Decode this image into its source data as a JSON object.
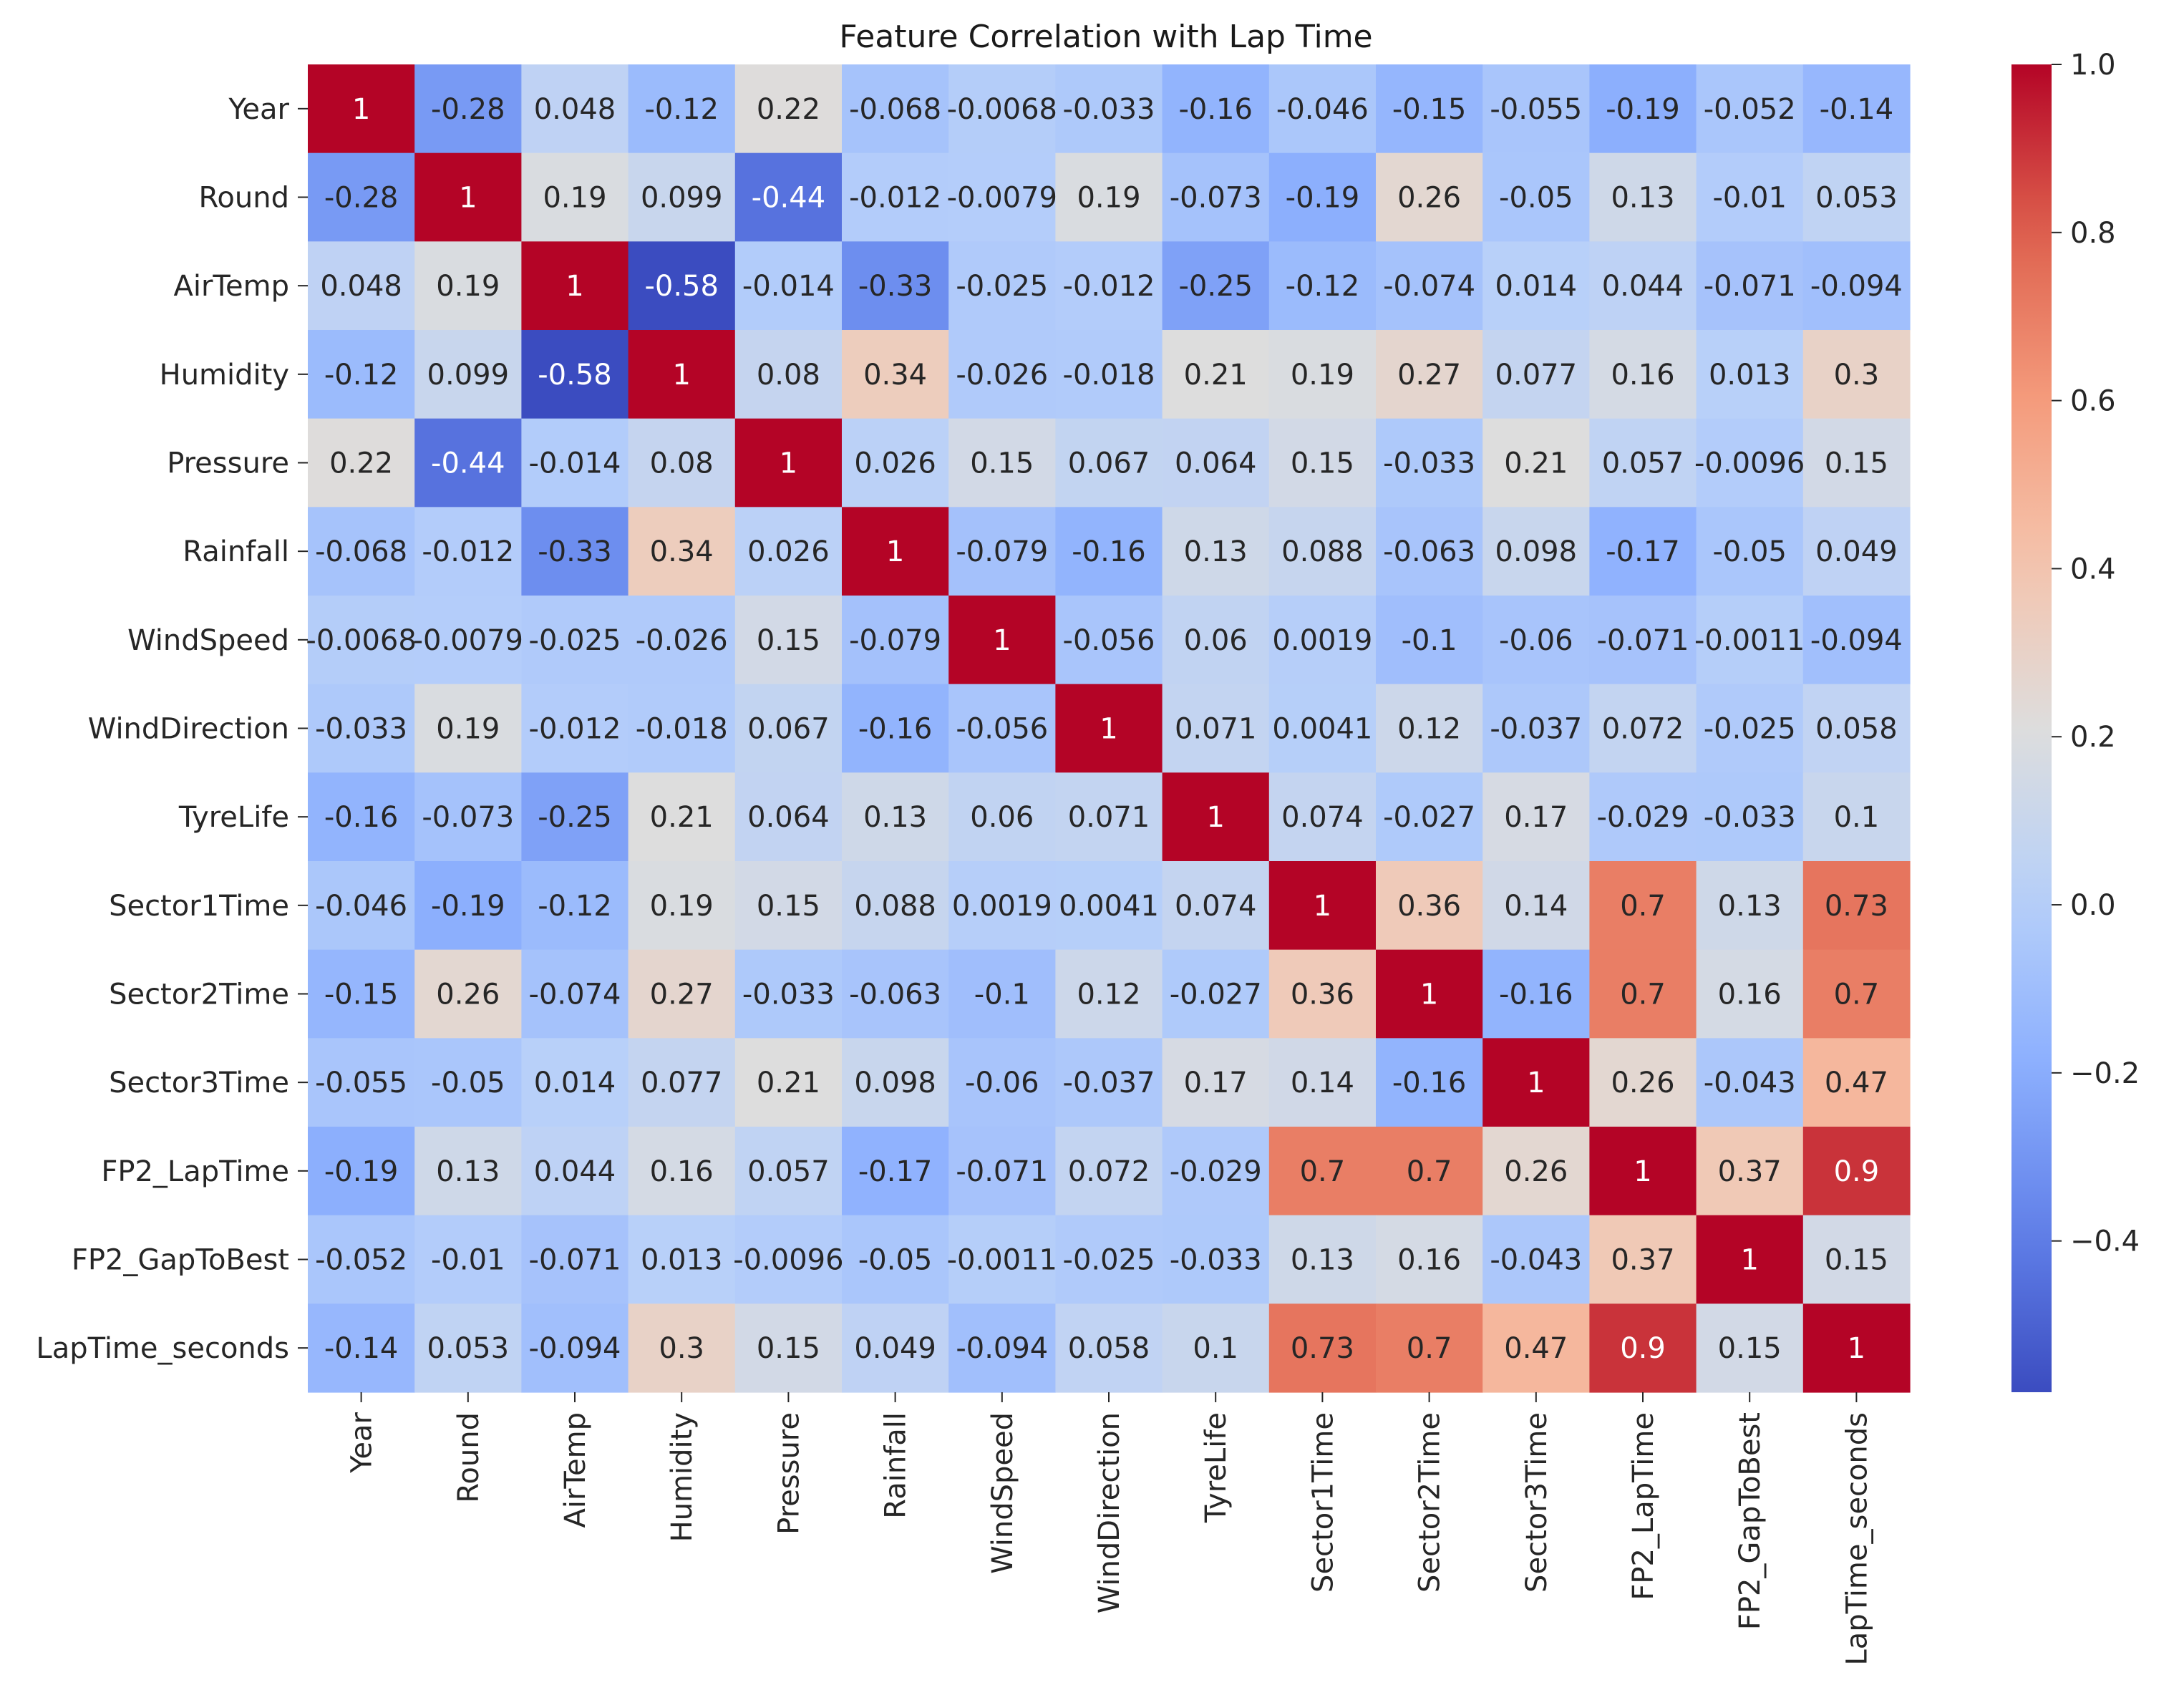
{
  "chart_data": {
    "type": "heatmap",
    "title": "Feature Correlation with Lap Time",
    "xlabel": "",
    "ylabel": "",
    "colormap": "coolwarm",
    "vmin": -0.58,
    "vmax": 1.0,
    "labels": [
      "Year",
      "Round",
      "AirTemp",
      "Humidity",
      "Pressure",
      "Rainfall",
      "WindSpeed",
      "WindDirection",
      "TyreLife",
      "Sector1Time",
      "Sector2Time",
      "Sector3Time",
      "FP2_LapTime",
      "FP2_GapToBest",
      "LapTime_seconds"
    ],
    "cell_text": [
      [
        "1",
        "-0.28",
        "0.048",
        "-0.12",
        "0.22",
        "-0.068",
        "-0.0068",
        "-0.033",
        "-0.16",
        "-0.046",
        "-0.15",
        "-0.055",
        "-0.19",
        "-0.052",
        "-0.14"
      ],
      [
        "-0.28",
        "1",
        "0.19",
        "0.099",
        "-0.44",
        "-0.012",
        "-0.0079",
        "0.19",
        "-0.073",
        "-0.19",
        "0.26",
        "-0.05",
        "0.13",
        "-0.01",
        "0.053"
      ],
      [
        "0.048",
        "0.19",
        "1",
        "-0.58",
        "-0.014",
        "-0.33",
        "-0.025",
        "-0.012",
        "-0.25",
        "-0.12",
        "-0.074",
        "0.014",
        "0.044",
        "-0.071",
        "-0.094"
      ],
      [
        "-0.12",
        "0.099",
        "-0.58",
        "1",
        "0.08",
        "0.34",
        "-0.026",
        "-0.018",
        "0.21",
        "0.19",
        "0.27",
        "0.077",
        "0.16",
        "0.013",
        "0.3"
      ],
      [
        "0.22",
        "-0.44",
        "-0.014",
        "0.08",
        "1",
        "0.026",
        "0.15",
        "0.067",
        "0.064",
        "0.15",
        "-0.033",
        "0.21",
        "0.057",
        "-0.0096",
        "0.15"
      ],
      [
        "-0.068",
        "-0.012",
        "-0.33",
        "0.34",
        "0.026",
        "1",
        "-0.079",
        "-0.16",
        "0.13",
        "0.088",
        "-0.063",
        "0.098",
        "-0.17",
        "-0.05",
        "0.049"
      ],
      [
        "-0.0068",
        "-0.0079",
        "-0.025",
        "-0.026",
        "0.15",
        "-0.079",
        "1",
        "-0.056",
        "0.06",
        "0.0019",
        "-0.1",
        "-0.06",
        "-0.071",
        "-0.0011",
        "-0.094"
      ],
      [
        "-0.033",
        "0.19",
        "-0.012",
        "-0.018",
        "0.067",
        "-0.16",
        "-0.056",
        "1",
        "0.071",
        "0.0041",
        "0.12",
        "-0.037",
        "0.072",
        "-0.025",
        "0.058"
      ],
      [
        "-0.16",
        "-0.073",
        "-0.25",
        "0.21",
        "0.064",
        "0.13",
        "0.06",
        "0.071",
        "1",
        "0.074",
        "-0.027",
        "0.17",
        "-0.029",
        "-0.033",
        "0.1"
      ],
      [
        "-0.046",
        "-0.19",
        "-0.12",
        "0.19",
        "0.15",
        "0.088",
        "0.0019",
        "0.0041",
        "0.074",
        "1",
        "0.36",
        "0.14",
        "0.7",
        "0.13",
        "0.73"
      ],
      [
        "-0.15",
        "0.26",
        "-0.074",
        "0.27",
        "-0.033",
        "-0.063",
        "-0.1",
        "0.12",
        "-0.027",
        "0.36",
        "1",
        "-0.16",
        "0.7",
        "0.16",
        "0.7"
      ],
      [
        "-0.055",
        "-0.05",
        "0.014",
        "0.077",
        "0.21",
        "0.098",
        "-0.06",
        "-0.037",
        "0.17",
        "0.14",
        "-0.16",
        "1",
        "0.26",
        "-0.043",
        "0.47"
      ],
      [
        "-0.19",
        "0.13",
        "0.044",
        "0.16",
        "0.057",
        "-0.17",
        "-0.071",
        "0.072",
        "-0.029",
        "0.7",
        "0.7",
        "0.26",
        "1",
        "0.37",
        "0.9"
      ],
      [
        "-0.052",
        "-0.01",
        "-0.071",
        "0.013",
        "-0.0096",
        "-0.05",
        "-0.0011",
        "-0.025",
        "-0.033",
        "0.13",
        "0.16",
        "-0.043",
        "0.37",
        "1",
        "0.15"
      ],
      [
        "-0.14",
        "0.053",
        "-0.094",
        "0.3",
        "0.15",
        "0.049",
        "-0.094",
        "0.058",
        "0.1",
        "0.73",
        "0.7",
        "0.47",
        "0.9",
        "0.15",
        "1"
      ]
    ],
    "colorbar_ticks": [
      {
        "value": 1.0,
        "label": "1.0"
      },
      {
        "value": 0.8,
        "label": "0.8"
      },
      {
        "value": 0.6,
        "label": "0.6"
      },
      {
        "value": 0.4,
        "label": "0.4"
      },
      {
        "value": 0.2,
        "label": "0.2"
      },
      {
        "value": 0.0,
        "label": "0.0"
      },
      {
        "value": -0.2,
        "label": "−0.2"
      },
      {
        "value": -0.4,
        "label": "−0.4"
      }
    ]
  }
}
